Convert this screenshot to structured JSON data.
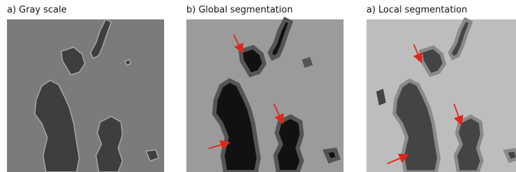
{
  "panels": [
    {
      "label": "a) Gray scale"
    },
    {
      "label": "b) Global segmentation"
    },
    {
      "label": "a) Local segmentation"
    }
  ]
}
